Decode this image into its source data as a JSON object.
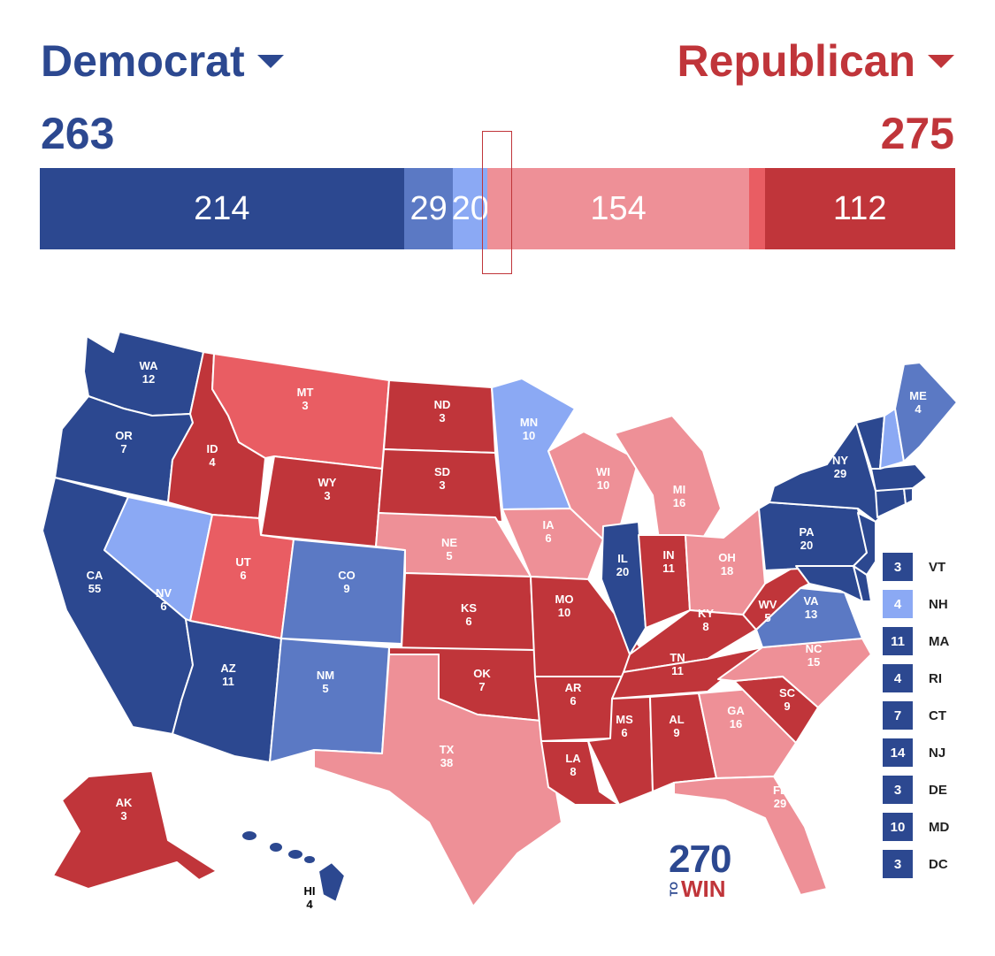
{
  "header": {
    "dem_label": "Democrat",
    "rep_label": "Republican",
    "dem_total": "263",
    "rep_total": "275"
  },
  "colors": {
    "safe_dem": "#2c4890",
    "likely_dem": "#5b79c4",
    "lean_dem": "#8ba9f4",
    "lean_rep": "#ee9097",
    "likely_rep": "#e95d63",
    "safe_rep": "#c0353a",
    "border": "#ffffff"
  },
  "bar": {
    "segments": [
      {
        "key": "safe_dem",
        "value": 214,
        "label": "214",
        "color": "#2c4890"
      },
      {
        "key": "likely_dem",
        "value": 29,
        "label": "29",
        "color": "#5b79c4"
      },
      {
        "key": "lean_dem",
        "value": 20,
        "label": "20",
        "color": "#8ba9f4"
      },
      {
        "key": "lean_rep",
        "value": 154,
        "label": "154",
        "color": "#ee9097"
      },
      {
        "key": "likely_rep",
        "value": 9,
        "label": "",
        "color": "#e95d63"
      },
      {
        "key": "safe_rep",
        "value": 112,
        "label": "112",
        "color": "#c0353a"
      }
    ],
    "threshold": 270
  },
  "states": [
    {
      "abbr": "WA",
      "ev": "12",
      "cat": "safe_dem"
    },
    {
      "abbr": "OR",
      "ev": "7",
      "cat": "safe_dem"
    },
    {
      "abbr": "CA",
      "ev": "55",
      "cat": "safe_dem"
    },
    {
      "abbr": "NV",
      "ev": "6",
      "cat": "lean_dem"
    },
    {
      "abbr": "ID",
      "ev": "4",
      "cat": "safe_rep"
    },
    {
      "abbr": "MT",
      "ev": "3",
      "cat": "likely_rep"
    },
    {
      "abbr": "WY",
      "ev": "3",
      "cat": "safe_rep"
    },
    {
      "abbr": "UT",
      "ev": "6",
      "cat": "likely_rep"
    },
    {
      "abbr": "AZ",
      "ev": "11",
      "cat": "safe_dem"
    },
    {
      "abbr": "CO",
      "ev": "9",
      "cat": "likely_dem"
    },
    {
      "abbr": "NM",
      "ev": "5",
      "cat": "likely_dem"
    },
    {
      "abbr": "ND",
      "ev": "3",
      "cat": "safe_rep"
    },
    {
      "abbr": "SD",
      "ev": "3",
      "cat": "safe_rep"
    },
    {
      "abbr": "NE",
      "ev": "5",
      "cat": "lean_rep"
    },
    {
      "abbr": "KS",
      "ev": "6",
      "cat": "safe_rep"
    },
    {
      "abbr": "OK",
      "ev": "7",
      "cat": "safe_rep"
    },
    {
      "abbr": "TX",
      "ev": "38",
      "cat": "lean_rep"
    },
    {
      "abbr": "MN",
      "ev": "10",
      "cat": "lean_dem"
    },
    {
      "abbr": "IA",
      "ev": "6",
      "cat": "lean_rep"
    },
    {
      "abbr": "MO",
      "ev": "10",
      "cat": "safe_rep"
    },
    {
      "abbr": "AR",
      "ev": "6",
      "cat": "safe_rep"
    },
    {
      "abbr": "LA",
      "ev": "8",
      "cat": "safe_rep"
    },
    {
      "abbr": "WI",
      "ev": "10",
      "cat": "lean_rep"
    },
    {
      "abbr": "IL",
      "ev": "20",
      "cat": "safe_dem"
    },
    {
      "abbr": "MI",
      "ev": "16",
      "cat": "lean_rep"
    },
    {
      "abbr": "IN",
      "ev": "11",
      "cat": "safe_rep"
    },
    {
      "abbr": "OH",
      "ev": "18",
      "cat": "lean_rep"
    },
    {
      "abbr": "KY",
      "ev": "8",
      "cat": "safe_rep"
    },
    {
      "abbr": "TN",
      "ev": "11",
      "cat": "safe_rep"
    },
    {
      "abbr": "MS",
      "ev": "6",
      "cat": "safe_rep"
    },
    {
      "abbr": "AL",
      "ev": "9",
      "cat": "safe_rep"
    },
    {
      "abbr": "GA",
      "ev": "16",
      "cat": "lean_rep"
    },
    {
      "abbr": "FL",
      "ev": "29",
      "cat": "lean_rep"
    },
    {
      "abbr": "SC",
      "ev": "9",
      "cat": "safe_rep"
    },
    {
      "abbr": "NC",
      "ev": "15",
      "cat": "lean_rep"
    },
    {
      "abbr": "VA",
      "ev": "13",
      "cat": "likely_dem"
    },
    {
      "abbr": "WV",
      "ev": "5",
      "cat": "safe_rep"
    },
    {
      "abbr": "PA",
      "ev": "20",
      "cat": "safe_dem"
    },
    {
      "abbr": "NY",
      "ev": "29",
      "cat": "safe_dem"
    },
    {
      "abbr": "ME",
      "ev": "4",
      "cat": "likely_dem"
    },
    {
      "abbr": "AK",
      "ev": "3",
      "cat": "safe_rep"
    },
    {
      "abbr": "HI",
      "ev": "4",
      "cat": "safe_dem"
    }
  ],
  "small_states": [
    {
      "abbr": "VT",
      "ev": "3",
      "cat": "safe_dem"
    },
    {
      "abbr": "NH",
      "ev": "4",
      "cat": "lean_dem"
    },
    {
      "abbr": "MA",
      "ev": "11",
      "cat": "safe_dem"
    },
    {
      "abbr": "RI",
      "ev": "4",
      "cat": "safe_dem"
    },
    {
      "abbr": "CT",
      "ev": "7",
      "cat": "safe_dem"
    },
    {
      "abbr": "NJ",
      "ev": "14",
      "cat": "safe_dem"
    },
    {
      "abbr": "DE",
      "ev": "3",
      "cat": "safe_dem"
    },
    {
      "abbr": "MD",
      "ev": "10",
      "cat": "safe_dem"
    },
    {
      "abbr": "DC",
      "ev": "3",
      "cat": "safe_dem"
    }
  ],
  "logo": {
    "number": "270",
    "to": "TO",
    "win": "WIN"
  }
}
